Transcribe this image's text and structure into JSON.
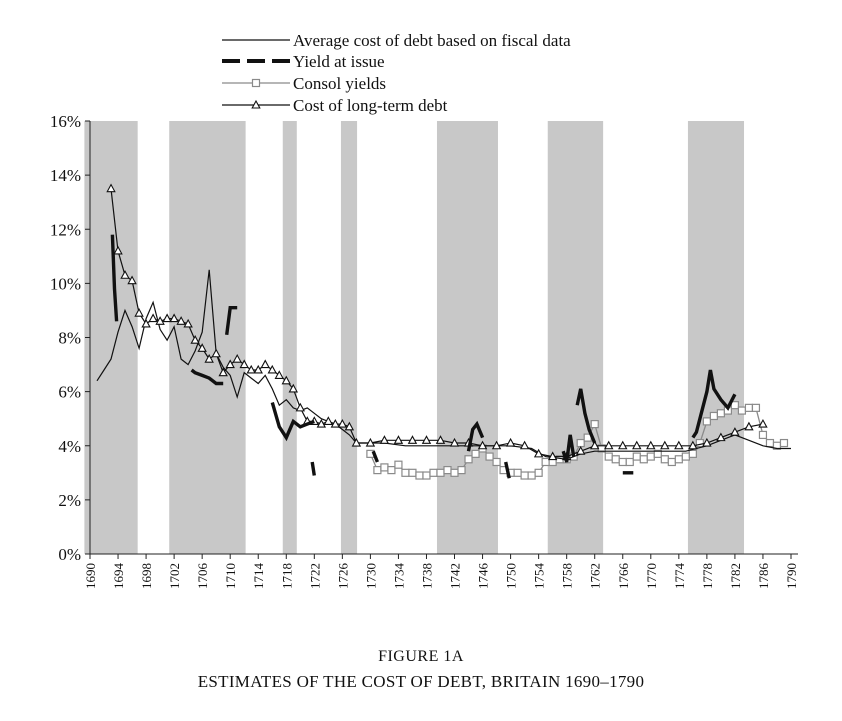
{
  "figure": {
    "label": "FIGURE 1A",
    "title": "ESTIMATES OF THE COST OF DEBT, BRITAIN 1690–1790"
  },
  "chart_data": {
    "type": "line",
    "xlim": [
      1690,
      1791
    ],
    "ylim": [
      0,
      16
    ],
    "y_ticks": [
      0,
      2,
      4,
      6,
      8,
      10,
      12,
      14,
      16
    ],
    "y_tick_labels": [
      "0%",
      "2%",
      "4%",
      "6%",
      "8%",
      "10%",
      "12%",
      "14%",
      "16%"
    ],
    "x_ticks": [
      1690,
      1694,
      1698,
      1702,
      1706,
      1710,
      1714,
      1718,
      1722,
      1726,
      1730,
      1734,
      1738,
      1742,
      1746,
      1750,
      1754,
      1758,
      1762,
      1766,
      1770,
      1774,
      1778,
      1782,
      1786,
      1790
    ],
    "x_tick_labels": [
      "1690",
      "1694",
      "1698",
      "1702",
      "1706",
      "1710",
      "1714",
      "1718",
      "1722",
      "1726",
      "1730",
      "1734",
      "1738",
      "1742",
      "1746",
      "1750",
      "1754",
      "1758",
      "1762",
      "1766",
      "1770",
      "1774",
      "1778",
      "1782",
      "1786",
      "1790"
    ],
    "grid": false,
    "legend_position": "top",
    "shaded_periods": [
      [
        1689.2,
        1696.8
      ],
      [
        1701.3,
        1712.2
      ],
      [
        1717.5,
        1719.5
      ],
      [
        1725.8,
        1728.1
      ],
      [
        1739.5,
        1748.2
      ],
      [
        1755.3,
        1763.2
      ],
      [
        1775.3,
        1783.3
      ]
    ],
    "shade_color": "#c8c8c8",
    "series": [
      {
        "name": "Average cost of debt based on fiscal data",
        "style": "thin-solid",
        "color": "#111111",
        "x": [
          1691,
          1692,
          1693,
          1694,
          1695,
          1696,
          1697,
          1698,
          1699,
          1700,
          1701,
          1702,
          1703,
          1704,
          1705,
          1706,
          1707,
          1708,
          1709,
          1710,
          1711,
          1712,
          1713,
          1714,
          1715,
          1716,
          1717,
          1718,
          1719,
          1720,
          1721,
          1722,
          1723,
          1724,
          1725,
          1726,
          1727,
          1728,
          1730,
          1732,
          1735,
          1740,
          1745,
          1750,
          1753,
          1755,
          1758,
          1760,
          1762,
          1765,
          1770,
          1775,
          1778,
          1780,
          1782,
          1784,
          1786,
          1788,
          1790
        ],
        "y": [
          6.4,
          6.8,
          7.2,
          8.2,
          9.0,
          8.4,
          7.6,
          8.7,
          9.3,
          8.3,
          7.9,
          8.4,
          7.2,
          7.0,
          7.5,
          8.2,
          10.5,
          7.4,
          6.9,
          6.6,
          5.8,
          6.7,
          6.5,
          6.3,
          6.6,
          6.1,
          5.5,
          5.7,
          5.4,
          5.3,
          5.4,
          5.2,
          5.0,
          4.9,
          4.8,
          4.6,
          4.4,
          4.1,
          4.1,
          4.1,
          4.0,
          4.0,
          4.0,
          4.0,
          3.9,
          3.6,
          3.5,
          3.7,
          3.8,
          3.8,
          3.8,
          3.8,
          4.0,
          4.2,
          4.4,
          4.2,
          4.0,
          3.9,
          3.9
        ]
      },
      {
        "name": "Yield at issue",
        "style": "thick-segments",
        "color": "#111111",
        "segments": [
          {
            "x": [
              1693.2,
              1693.5,
              1693.8
            ],
            "y": [
              11.8,
              9.8,
              8.6
            ]
          },
          {
            "x": [
              1704.5,
              1705,
              1706,
              1707,
              1708,
              1709
            ],
            "y": [
              6.8,
              6.7,
              6.6,
              6.5,
              6.3,
              6.3
            ]
          },
          {
            "x": [
              1709.5,
              1710,
              1711
            ],
            "y": [
              8.1,
              9.1,
              9.1
            ]
          },
          {
            "x": [
              1716,
              1717,
              1718,
              1719,
              1720,
              1721,
              1722
            ],
            "y": [
              5.6,
              4.7,
              4.3,
              4.9,
              4.7,
              4.8,
              4.9
            ]
          },
          {
            "x": [
              1721.7,
              1722
            ],
            "y": [
              3.4,
              2.9
            ]
          },
          {
            "x": [
              1730.4,
              1731
            ],
            "y": [
              3.8,
              3.4
            ]
          },
          {
            "x": [
              1744,
              1744.6,
              1745.2,
              1746
            ],
            "y": [
              3.8,
              4.6,
              4.8,
              4.3
            ]
          },
          {
            "x": [
              1749.3,
              1749.8
            ],
            "y": [
              3.4,
              2.8
            ]
          },
          {
            "x": [
              1757.5,
              1758,
              1758.5,
              1759
            ],
            "y": [
              3.8,
              3.4,
              4.4,
              3.6
            ]
          },
          {
            "x": [
              1759.5,
              1760,
              1760.6,
              1761.2,
              1762
            ],
            "y": [
              5.5,
              6.1,
              5.2,
              4.6,
              4.1
            ]
          },
          {
            "x": [
              1766,
              1767.5
            ],
            "y": [
              3.0,
              3.0
            ]
          },
          {
            "x": [
              1776,
              1776.5,
              1777,
              1778,
              1778.5,
              1779,
              1780,
              1781,
              1782
            ],
            "y": [
              4.3,
              4.5,
              5.0,
              6.0,
              6.8,
              6.1,
              5.7,
              5.4,
              5.9
            ]
          }
        ]
      },
      {
        "name": "Consol yields",
        "style": "gray-square-markers",
        "color": "#8a8a8a",
        "x": [
          1730,
          1731,
          1732,
          1733,
          1734,
          1735,
          1736,
          1737,
          1738,
          1739,
          1740,
          1741,
          1742,
          1743,
          1744,
          1745,
          1746,
          1747,
          1748,
          1749,
          1750,
          1751,
          1752,
          1753,
          1754,
          1755,
          1756,
          1757,
          1758,
          1759,
          1760,
          1761,
          1762,
          1763,
          1764,
          1765,
          1766,
          1767,
          1768,
          1769,
          1770,
          1771,
          1772,
          1773,
          1774,
          1775,
          1776,
          1777,
          1778,
          1779,
          1780,
          1781,
          1782,
          1783,
          1784,
          1785,
          1786,
          1787,
          1788,
          1789
        ],
        "y": [
          3.7,
          3.1,
          3.2,
          3.1,
          3.3,
          3.0,
          3.0,
          2.9,
          2.9,
          3.0,
          3.0,
          3.1,
          3.0,
          3.1,
          3.5,
          3.7,
          3.9,
          3.6,
          3.4,
          3.1,
          3.0,
          3.0,
          2.9,
          2.9,
          3.0,
          3.4,
          3.4,
          3.5,
          3.5,
          3.6,
          4.1,
          4.3,
          4.8,
          3.9,
          3.6,
          3.5,
          3.4,
          3.4,
          3.6,
          3.5,
          3.6,
          3.7,
          3.5,
          3.4,
          3.5,
          3.6,
          3.7,
          4.1,
          4.9,
          5.1,
          5.2,
          5.3,
          5.5,
          5.3,
          5.4,
          5.4,
          4.4,
          4.1,
          4.0,
          4.1
        ]
      },
      {
        "name": "Cost of long-term debt",
        "style": "triangle-markers",
        "color": "#111111",
        "x": [
          1693,
          1694,
          1695,
          1696,
          1697,
          1698,
          1699,
          1700,
          1701,
          1702,
          1703,
          1704,
          1705,
          1706,
          1707,
          1708,
          1709,
          1710,
          1711,
          1712,
          1713,
          1714,
          1715,
          1716,
          1717,
          1718,
          1719,
          1720,
          1721,
          1722,
          1723,
          1724,
          1725,
          1726,
          1727,
          1728,
          1730,
          1732,
          1734,
          1736,
          1738,
          1740,
          1742,
          1744,
          1746,
          1748,
          1750,
          1752,
          1754,
          1756,
          1758,
          1760,
          1762,
          1764,
          1766,
          1768,
          1770,
          1772,
          1774,
          1776,
          1778,
          1780,
          1782,
          1784,
          1786
        ],
        "y": [
          13.5,
          11.2,
          10.3,
          10.1,
          8.9,
          8.5,
          8.7,
          8.6,
          8.7,
          8.7,
          8.6,
          8.5,
          7.9,
          7.6,
          7.2,
          7.4,
          6.7,
          7.0,
          7.2,
          7.0,
          6.8,
          6.8,
          7.0,
          6.8,
          6.6,
          6.4,
          6.1,
          5.4,
          4.9,
          4.9,
          4.8,
          4.9,
          4.8,
          4.8,
          4.7,
          4.1,
          4.1,
          4.2,
          4.2,
          4.2,
          4.2,
          4.2,
          4.1,
          4.1,
          4.0,
          4.0,
          4.1,
          4.0,
          3.7,
          3.6,
          3.6,
          3.8,
          4.0,
          4.0,
          4.0,
          4.0,
          4.0,
          4.0,
          4.0,
          4.0,
          4.1,
          4.3,
          4.5,
          4.7,
          4.8
        ]
      }
    ]
  }
}
